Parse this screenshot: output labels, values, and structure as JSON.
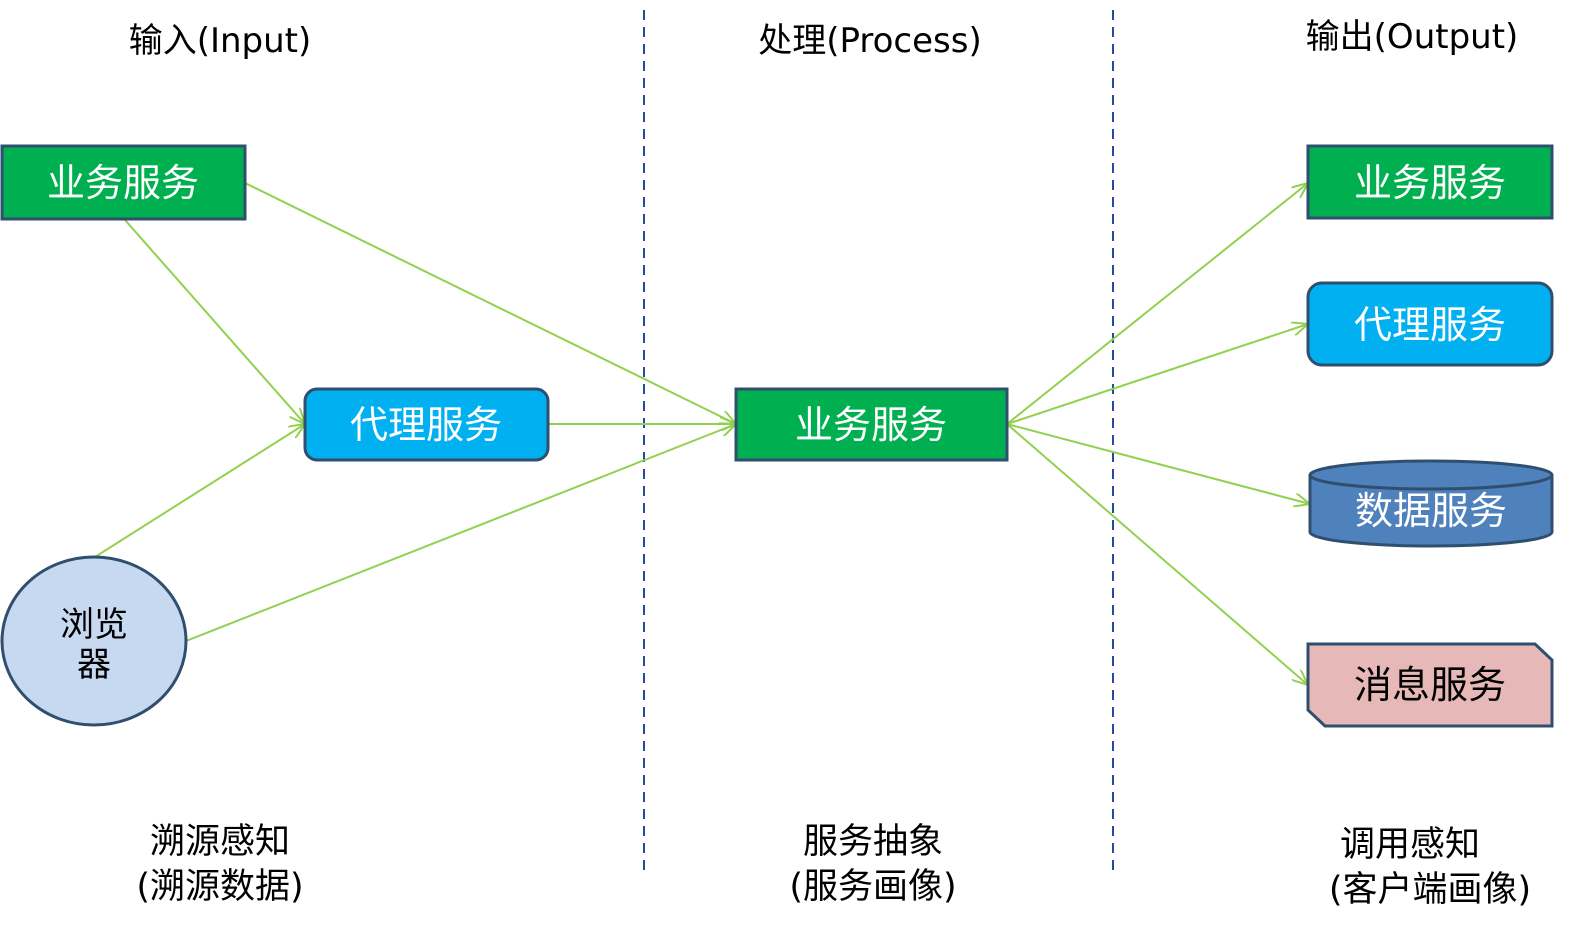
{
  "columns": {
    "input": {
      "title": "输入(Input)",
      "caption_line1": "溯源感知",
      "caption_line2": "(溯源数据)"
    },
    "process": {
      "title": "处理(Process)",
      "caption_line1": "服务抽象",
      "caption_line2": "(服务画像)"
    },
    "output": {
      "title": "输出(Output)",
      "caption_line1": "调用感知",
      "caption_line2": "(客户端画像)"
    }
  },
  "nodes": {
    "in_business": {
      "label": "业务服务"
    },
    "in_proxy": {
      "label": "代理服务"
    },
    "in_browser": {
      "label_line1": "浏览",
      "label_line2": "器"
    },
    "center_business": {
      "label": "业务服务"
    },
    "out_business": {
      "label": "业务服务"
    },
    "out_proxy": {
      "label": "代理服务"
    },
    "out_data": {
      "label": "数据服务"
    },
    "out_message": {
      "label": "消息服务"
    }
  },
  "colors": {
    "business": "#00b050",
    "proxy": "#00b0f0",
    "data": "#4f81bd",
    "message": "#e6b9b8",
    "browser": "#c6d9f1",
    "border": "#2f4f6f",
    "arrow": "#92d050",
    "divider": "#1f4e9a"
  }
}
